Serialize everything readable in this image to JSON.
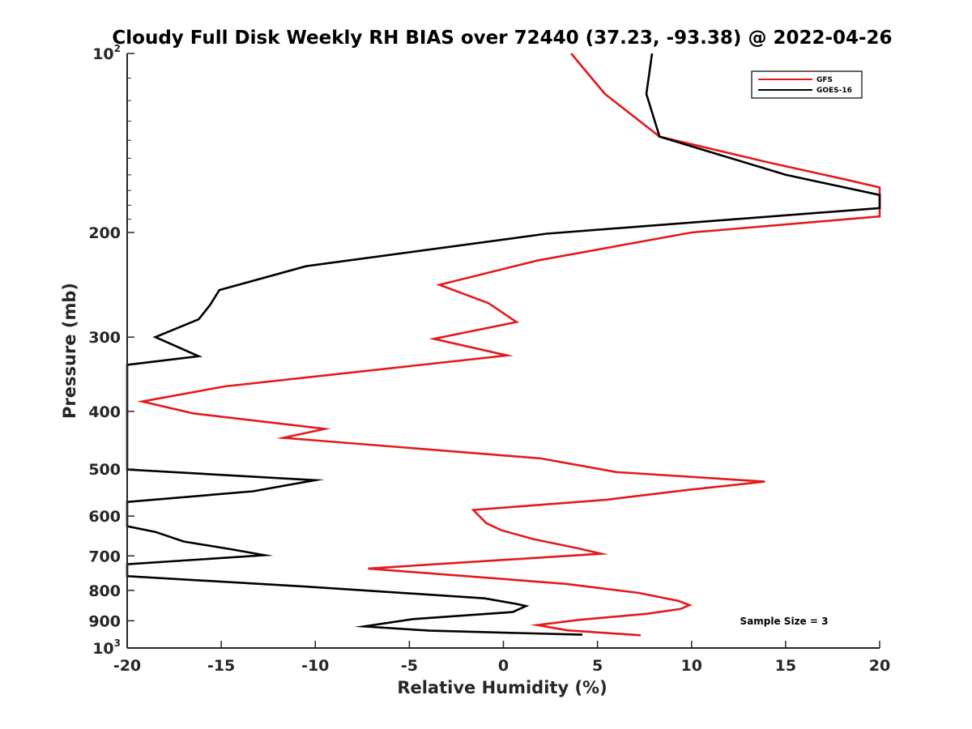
{
  "chart_data": {
    "type": "line",
    "title": "Cloudy Full Disk Weekly RH BIAS over 72440 (37.23, -93.38) @ 2022-04-26",
    "xlabel": "Relative Humidity (%)",
    "ylabel": "Pressure (mb)",
    "xlim": [
      -20,
      20
    ],
    "ylim": [
      100,
      1000
    ],
    "y_scale": "log",
    "y_reversed": true,
    "grid": false,
    "legend_position": "top-right",
    "annotation": "Sample Size = 3",
    "x_ticks": [
      -20,
      -15,
      -10,
      -5,
      0,
      5,
      10,
      15,
      20
    ],
    "y_ticks": [
      {
        "value": 100,
        "base": "10",
        "exp": "2"
      },
      {
        "value": 200,
        "label": "200"
      },
      {
        "value": 300,
        "label": "300"
      },
      {
        "value": 400,
        "label": "400"
      },
      {
        "value": 500,
        "label": "500"
      },
      {
        "value": 600,
        "label": "600"
      },
      {
        "value": 700,
        "label": "700"
      },
      {
        "value": 800,
        "label": "800"
      },
      {
        "value": 900,
        "label": "900"
      },
      {
        "value": 1000,
        "base": "10",
        "exp": "3"
      }
    ],
    "series": [
      {
        "name": "GFS",
        "color": "#e31a1c",
        "points": [
          [
            3.6,
            100
          ],
          [
            5.4,
            117
          ],
          [
            8.3,
            138
          ],
          [
            13.9,
            152
          ],
          [
            18.2,
            163
          ],
          [
            20.0,
            168
          ],
          [
            20.0,
            188
          ],
          [
            10.0,
            200
          ],
          [
            1.8,
            223
          ],
          [
            -3.4,
            245
          ],
          [
            -0.8,
            263
          ],
          [
            0.7,
            283
          ],
          [
            -3.7,
            302
          ],
          [
            0.2,
            322
          ],
          [
            -14.8,
            363
          ],
          [
            -19.2,
            385
          ],
          [
            -16.5,
            403
          ],
          [
            -10.3,
            425
          ],
          [
            -9.5,
            428
          ],
          [
            -11.7,
            443
          ],
          [
            2.0,
            480
          ],
          [
            6.0,
            506
          ],
          [
            13.9,
            525
          ],
          [
            9.8,
            542
          ],
          [
            5.5,
            563
          ],
          [
            -1.6,
            586
          ],
          [
            -0.9,
            617
          ],
          [
            -0.1,
            634
          ],
          [
            1.6,
            656
          ],
          [
            4.0,
            680
          ],
          [
            5.2,
            694
          ],
          [
            -7.2,
            735
          ],
          [
            3.3,
            780
          ],
          [
            7.2,
            808
          ],
          [
            9.3,
            833
          ],
          [
            9.9,
            847
          ],
          [
            9.4,
            860
          ],
          [
            7.6,
            876
          ],
          [
            4.0,
            897
          ],
          [
            1.8,
            915
          ],
          [
            3.4,
            934
          ],
          [
            7.3,
            952
          ]
        ]
      },
      {
        "name": "GOES-16",
        "color": "#000000",
        "points": [
          [
            7.9,
            100
          ],
          [
            7.6,
            117
          ],
          [
            8.3,
            138
          ],
          [
            15.0,
            160
          ],
          [
            20.0,
            173
          ],
          [
            20.0,
            182
          ],
          [
            2.3,
            201
          ],
          [
            -10.5,
            228
          ],
          [
            -15.1,
            250
          ],
          [
            -15.6,
            265
          ],
          [
            -16.2,
            280
          ],
          [
            -18.5,
            300
          ],
          [
            -16.2,
            323
          ],
          [
            -20.0,
            334
          ],
          [
            -20.0,
            501
          ],
          [
            -10.0,
            522
          ],
          [
            -13.3,
            545
          ],
          [
            -20.0,
            568
          ],
          [
            -20.0,
            624
          ],
          [
            -18.5,
            638
          ],
          [
            -17.0,
            662
          ],
          [
            -14.5,
            682
          ],
          [
            -12.7,
            698
          ],
          [
            -20.0,
            723
          ],
          [
            -20.0,
            757
          ],
          [
            -10.0,
            790
          ],
          [
            -1.0,
            825
          ],
          [
            0.7,
            843
          ],
          [
            1.2,
            850
          ],
          [
            0.5,
            870
          ],
          [
            -4.8,
            894
          ],
          [
            -7.4,
            920
          ],
          [
            -3.9,
            935
          ],
          [
            4.2,
            950
          ]
        ]
      }
    ]
  },
  "colors": {
    "axis": "#262626",
    "gfs": "#e31a1c",
    "goes": "#000000"
  }
}
